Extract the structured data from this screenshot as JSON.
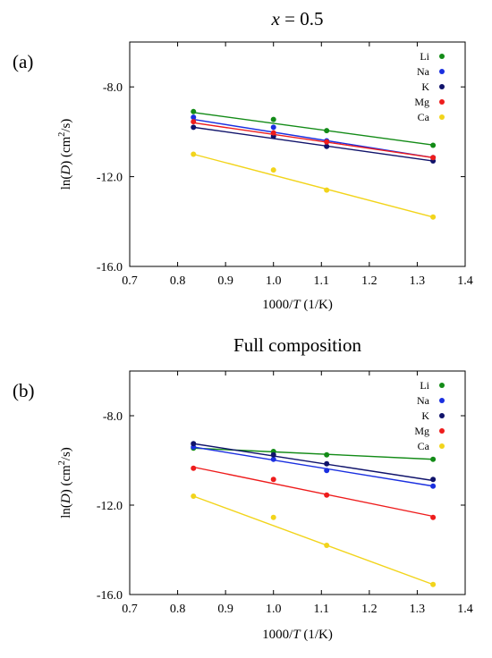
{
  "chart_data": [
    {
      "type": "scatter",
      "panel_label": "(a)",
      "title": {
        "var": "x",
        "rest": " = 0.5"
      },
      "xlabel": {
        "pre": "1000/",
        "var": "T",
        "post": " (1/K)"
      },
      "ylabel": {
        "pre": "ln(",
        "var": "D",
        "mid": ") (cm",
        "sup": "2",
        "post": "/s)"
      },
      "xlim": [
        0.7,
        1.4
      ],
      "ylim": [
        -16.0,
        -6.0
      ],
      "xticks": [
        0.7,
        0.8,
        0.9,
        1.0,
        1.1,
        1.2,
        1.3,
        1.4
      ],
      "yticks": [
        -16.0,
        -12.0,
        -8.0
      ],
      "legend_position": "top-right",
      "grid": false,
      "x": [
        0.833,
        1.0,
        1.111,
        1.333
      ],
      "series": [
        {
          "name": "Li",
          "color": "#138b17",
          "values": [
            -9.1,
            -9.45,
            -9.95,
            -10.6
          ],
          "fit": [
            -9.14,
            -10.59
          ]
        },
        {
          "name": "Na",
          "color": "#1a2fe0",
          "values": [
            -9.35,
            -9.8,
            -10.4,
            -11.15
          ],
          "fit": [
            -9.45,
            -11.15
          ]
        },
        {
          "name": "K",
          "color": "#10136b",
          "values": [
            -9.8,
            -10.2,
            -10.65,
            -11.3
          ],
          "fit": [
            -9.8,
            -11.3
          ]
        },
        {
          "name": "Mg",
          "color": "#ee1c1c",
          "values": [
            -9.55,
            -10.05,
            -10.45,
            -11.15
          ],
          "fit": [
            -9.6,
            -11.15
          ]
        },
        {
          "name": "Ca",
          "color": "#f2d41b",
          "values": [
            -11.0,
            -11.7,
            -12.6,
            -13.8
          ],
          "fit": [
            -11.0,
            -13.8
          ]
        }
      ]
    },
    {
      "type": "scatter",
      "panel_label": "(b)",
      "title": {
        "text": "Full composition"
      },
      "xlabel": {
        "pre": "1000/",
        "var": "T",
        "post": " (1/K)"
      },
      "ylabel": {
        "pre": "ln(",
        "var": "D",
        "mid": ") (cm",
        "sup": "2",
        "post": "/s)"
      },
      "xlim": [
        0.7,
        1.4
      ],
      "ylim": [
        -16.0,
        -6.0
      ],
      "xticks": [
        0.7,
        0.8,
        0.9,
        1.0,
        1.1,
        1.2,
        1.3,
        1.4
      ],
      "yticks": [
        -16.0,
        -12.0,
        -8.0
      ],
      "legend_position": "top-right",
      "grid": false,
      "x": [
        0.833,
        1.0,
        1.111,
        1.333
      ],
      "series": [
        {
          "name": "Li",
          "color": "#138b17",
          "values": [
            -9.45,
            -9.6,
            -9.75,
            -9.95
          ],
          "fit": [
            -9.45,
            -9.95
          ]
        },
        {
          "name": "Na",
          "color": "#1a2fe0",
          "values": [
            -9.4,
            -9.95,
            -10.45,
            -11.15
          ],
          "fit": [
            -9.4,
            -11.15
          ]
        },
        {
          "name": "K",
          "color": "#10136b",
          "values": [
            -9.25,
            -9.75,
            -10.15,
            -10.85
          ],
          "fit": [
            -9.25,
            -10.9
          ]
        },
        {
          "name": "Mg",
          "color": "#ee1c1c",
          "values": [
            -10.35,
            -10.85,
            -11.55,
            -12.55
          ],
          "fit": [
            -10.3,
            -12.5
          ]
        },
        {
          "name": "Ca",
          "color": "#f2d41b",
          "values": [
            -11.6,
            -12.55,
            -13.8,
            -15.55
          ],
          "fit": [
            -11.6,
            -15.55
          ]
        }
      ]
    }
  ]
}
